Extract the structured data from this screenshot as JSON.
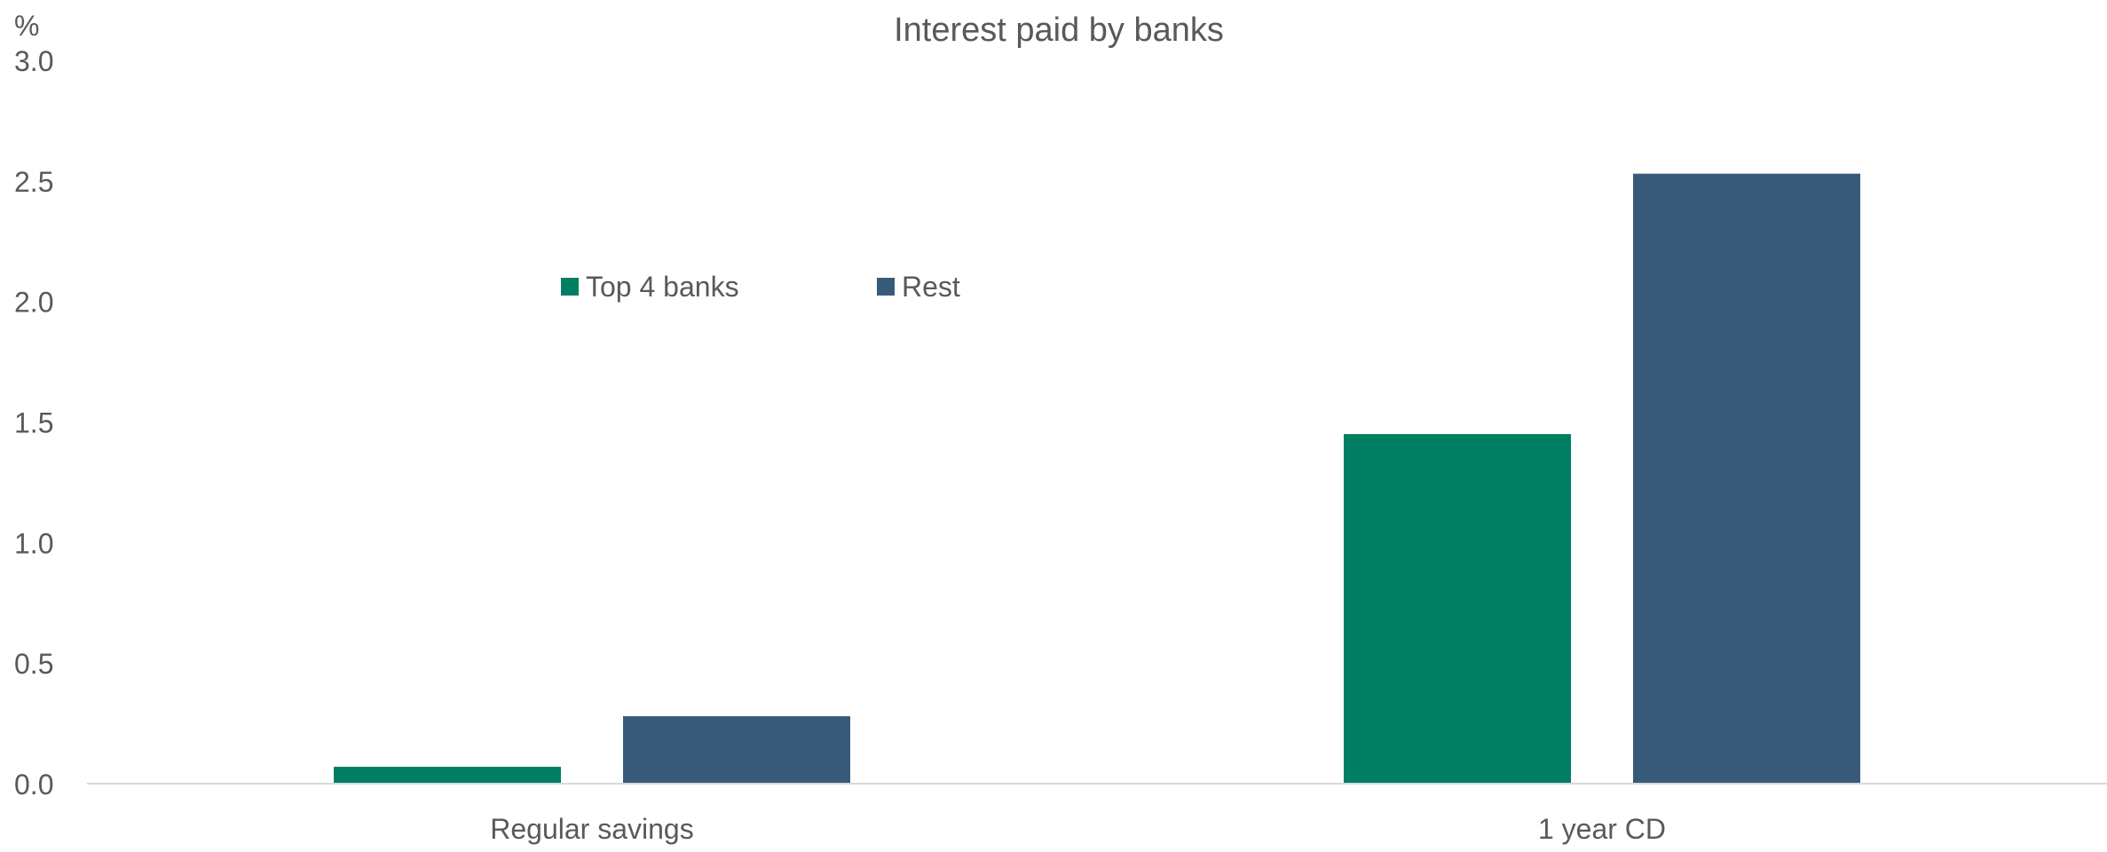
{
  "chart_data": {
    "type": "bar",
    "title": "Interest paid by banks",
    "ylabel": "%",
    "xlabel": "",
    "categories": [
      "Regular savings",
      "1 year CD"
    ],
    "series": [
      {
        "name": "Top 4 banks",
        "color": "#007E63",
        "values": [
          0.07,
          1.45
        ]
      },
      {
        "name": "Rest",
        "color": "#385A7A",
        "values": [
          0.28,
          2.53
        ]
      }
    ],
    "ylim": [
      0,
      3.0
    ],
    "yticks": [
      "0.0",
      "0.5",
      "1.0",
      "1.5",
      "2.0",
      "2.5",
      "3.0"
    ],
    "grid": false,
    "legend_position": "upper-left-inside"
  }
}
